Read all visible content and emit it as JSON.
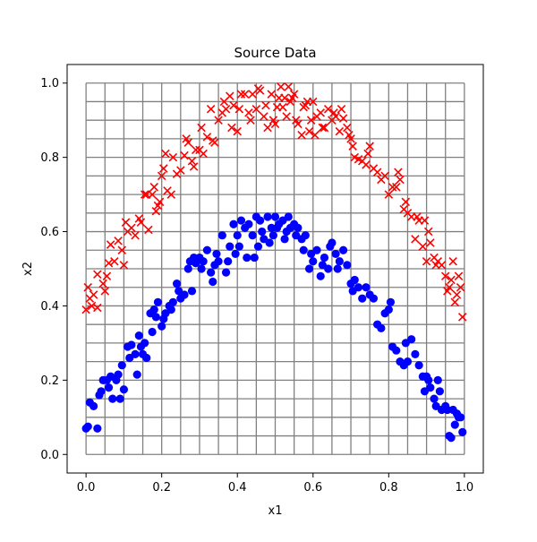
{
  "chart_data": {
    "type": "scatter",
    "title": "Source Data",
    "xlabel": "x1",
    "ylabel": "x2",
    "xlim": [
      -0.05,
      1.05
    ],
    "ylim": [
      -0.05,
      1.05
    ],
    "xticks": [
      0.0,
      0.2,
      0.4,
      0.6,
      0.8,
      1.0
    ],
    "yticks": [
      0.0,
      0.2,
      0.4,
      0.6,
      0.8,
      1.0
    ],
    "xtick_labels": [
      "0.0",
      "0.2",
      "0.4",
      "0.6",
      "0.8",
      "1.0"
    ],
    "ytick_labels": [
      "0.0",
      "0.2",
      "0.4",
      "0.6",
      "0.8",
      "1.0"
    ],
    "grid": {
      "visible": true,
      "range": [
        0,
        1
      ],
      "step": 0.05,
      "color": "#808080"
    },
    "series": [
      {
        "marker": "x",
        "color": "#ff0000",
        "points": [
          [
            0.0,
            0.39
          ],
          [
            0.005,
            0.45
          ],
          [
            0.01,
            0.42
          ],
          [
            0.015,
            0.4
          ],
          [
            0.02,
            0.43
          ],
          [
            0.03,
            0.485
          ],
          [
            0.03,
            0.395
          ],
          [
            0.045,
            0.46
          ],
          [
            0.05,
            0.44
          ],
          [
            0.055,
            0.48
          ],
          [
            0.06,
            0.515
          ],
          [
            0.065,
            0.565
          ],
          [
            0.075,
            0.52
          ],
          [
            0.085,
            0.575
          ],
          [
            0.095,
            0.55
          ],
          [
            0.1,
            0.51
          ],
          [
            0.105,
            0.625
          ],
          [
            0.11,
            0.6
          ],
          [
            0.12,
            0.61
          ],
          [
            0.13,
            0.59
          ],
          [
            0.14,
            0.635
          ],
          [
            0.145,
            0.625
          ],
          [
            0.155,
            0.7
          ],
          [
            0.16,
            0.7
          ],
          [
            0.165,
            0.605
          ],
          [
            0.175,
            0.7
          ],
          [
            0.18,
            0.72
          ],
          [
            0.185,
            0.655
          ],
          [
            0.19,
            0.67
          ],
          [
            0.195,
            0.68
          ],
          [
            0.2,
            0.75
          ],
          [
            0.205,
            0.77
          ],
          [
            0.21,
            0.81
          ],
          [
            0.215,
            0.71
          ],
          [
            0.225,
            0.7
          ],
          [
            0.23,
            0.8
          ],
          [
            0.24,
            0.755
          ],
          [
            0.25,
            0.765
          ],
          [
            0.26,
            0.805
          ],
          [
            0.265,
            0.85
          ],
          [
            0.27,
            0.84
          ],
          [
            0.28,
            0.79
          ],
          [
            0.285,
            0.775
          ],
          [
            0.29,
            0.82
          ],
          [
            0.3,
            0.82
          ],
          [
            0.305,
            0.88
          ],
          [
            0.31,
            0.81
          ],
          [
            0.32,
            0.855
          ],
          [
            0.33,
            0.93
          ],
          [
            0.335,
            0.845
          ],
          [
            0.34,
            0.84
          ],
          [
            0.35,
            0.9
          ],
          [
            0.36,
            0.92
          ],
          [
            0.365,
            0.95
          ],
          [
            0.37,
            0.93
          ],
          [
            0.38,
            0.965
          ],
          [
            0.385,
            0.88
          ],
          [
            0.39,
            0.94
          ],
          [
            0.4,
            0.87
          ],
          [
            0.405,
            0.93
          ],
          [
            0.41,
            0.97
          ],
          [
            0.42,
            0.97
          ],
          [
            0.43,
            0.92
          ],
          [
            0.435,
            0.9
          ],
          [
            0.44,
            0.97
          ],
          [
            0.45,
            0.93
          ],
          [
            0.455,
            0.985
          ],
          [
            0.46,
            0.98
          ],
          [
            0.47,
            0.91
          ],
          [
            0.475,
            0.94
          ],
          [
            0.48,
            0.88
          ],
          [
            0.49,
            0.97
          ],
          [
            0.495,
            0.9
          ],
          [
            0.5,
            0.89
          ],
          [
            0.505,
            0.935
          ],
          [
            0.51,
            0.96
          ],
          [
            0.515,
            0.99
          ],
          [
            0.52,
            0.935
          ],
          [
            0.525,
            0.96
          ],
          [
            0.53,
            0.91
          ],
          [
            0.535,
            0.99
          ],
          [
            0.54,
            0.95
          ],
          [
            0.545,
            0.96
          ],
          [
            0.55,
            0.97
          ],
          [
            0.555,
            0.9
          ],
          [
            0.56,
            0.89
          ],
          [
            0.57,
            0.86
          ],
          [
            0.575,
            0.935
          ],
          [
            0.58,
            0.94
          ],
          [
            0.585,
            0.95
          ],
          [
            0.59,
            0.87
          ],
          [
            0.595,
            0.9
          ],
          [
            0.6,
            0.95
          ],
          [
            0.605,
            0.86
          ],
          [
            0.61,
            0.91
          ],
          [
            0.62,
            0.92
          ],
          [
            0.625,
            0.88
          ],
          [
            0.63,
            0.88
          ],
          [
            0.64,
            0.93
          ],
          [
            0.65,
            0.9
          ],
          [
            0.655,
            0.92
          ],
          [
            0.66,
            0.91
          ],
          [
            0.67,
            0.87
          ],
          [
            0.675,
            0.93
          ],
          [
            0.68,
            0.905
          ],
          [
            0.69,
            0.88
          ],
          [
            0.695,
            0.86
          ],
          [
            0.7,
            0.85
          ],
          [
            0.705,
            0.83
          ],
          [
            0.71,
            0.8
          ],
          [
            0.72,
            0.795
          ],
          [
            0.73,
            0.79
          ],
          [
            0.74,
            0.78
          ],
          [
            0.745,
            0.81
          ],
          [
            0.75,
            0.83
          ],
          [
            0.76,
            0.77
          ],
          [
            0.77,
            0.76
          ],
          [
            0.78,
            0.74
          ],
          [
            0.79,
            0.75
          ],
          [
            0.8,
            0.7
          ],
          [
            0.81,
            0.72
          ],
          [
            0.82,
            0.72
          ],
          [
            0.825,
            0.76
          ],
          [
            0.83,
            0.74
          ],
          [
            0.84,
            0.66
          ],
          [
            0.845,
            0.68
          ],
          [
            0.85,
            0.65
          ],
          [
            0.86,
            0.64
          ],
          [
            0.87,
            0.58
          ],
          [
            0.875,
            0.64
          ],
          [
            0.88,
            0.63
          ],
          [
            0.89,
            0.56
          ],
          [
            0.895,
            0.63
          ],
          [
            0.9,
            0.52
          ],
          [
            0.905,
            0.6
          ],
          [
            0.91,
            0.57
          ],
          [
            0.92,
            0.53
          ],
          [
            0.925,
            0.51
          ],
          [
            0.93,
            0.52
          ],
          [
            0.94,
            0.51
          ],
          [
            0.95,
            0.48
          ],
          [
            0.955,
            0.44
          ],
          [
            0.96,
            0.45
          ],
          [
            0.965,
            0.47
          ],
          [
            0.97,
            0.52
          ],
          [
            0.975,
            0.41
          ],
          [
            0.98,
            0.43
          ],
          [
            0.985,
            0.48
          ],
          [
            0.99,
            0.45
          ],
          [
            0.995,
            0.37
          ]
        ]
      },
      {
        "marker": "o",
        "color": "#0000ff",
        "points": [
          [
            0.0,
            0.07
          ],
          [
            0.005,
            0.075
          ],
          [
            0.01,
            0.14
          ],
          [
            0.02,
            0.13
          ],
          [
            0.03,
            0.07
          ],
          [
            0.035,
            0.16
          ],
          [
            0.04,
            0.17
          ],
          [
            0.045,
            0.2
          ],
          [
            0.055,
            0.2
          ],
          [
            0.06,
            0.18
          ],
          [
            0.065,
            0.21
          ],
          [
            0.07,
            0.15
          ],
          [
            0.08,
            0.2
          ],
          [
            0.085,
            0.215
          ],
          [
            0.09,
            0.15
          ],
          [
            0.095,
            0.24
          ],
          [
            0.1,
            0.175
          ],
          [
            0.11,
            0.29
          ],
          [
            0.115,
            0.26
          ],
          [
            0.12,
            0.295
          ],
          [
            0.13,
            0.27
          ],
          [
            0.135,
            0.215
          ],
          [
            0.14,
            0.32
          ],
          [
            0.145,
            0.29
          ],
          [
            0.15,
            0.27
          ],
          [
            0.155,
            0.3
          ],
          [
            0.16,
            0.26
          ],
          [
            0.17,
            0.38
          ],
          [
            0.175,
            0.33
          ],
          [
            0.18,
            0.39
          ],
          [
            0.185,
            0.37
          ],
          [
            0.19,
            0.41
          ],
          [
            0.2,
            0.345
          ],
          [
            0.205,
            0.365
          ],
          [
            0.21,
            0.38
          ],
          [
            0.22,
            0.4
          ],
          [
            0.225,
            0.39
          ],
          [
            0.23,
            0.41
          ],
          [
            0.24,
            0.46
          ],
          [
            0.245,
            0.44
          ],
          [
            0.25,
            0.42
          ],
          [
            0.26,
            0.43
          ],
          [
            0.27,
            0.5
          ],
          [
            0.275,
            0.52
          ],
          [
            0.28,
            0.44
          ],
          [
            0.285,
            0.53
          ],
          [
            0.29,
            0.515
          ],
          [
            0.3,
            0.53
          ],
          [
            0.305,
            0.5
          ],
          [
            0.31,
            0.52
          ],
          [
            0.32,
            0.55
          ],
          [
            0.33,
            0.49
          ],
          [
            0.335,
            0.465
          ],
          [
            0.34,
            0.51
          ],
          [
            0.345,
            0.54
          ],
          [
            0.35,
            0.52
          ],
          [
            0.36,
            0.59
          ],
          [
            0.37,
            0.49
          ],
          [
            0.375,
            0.52
          ],
          [
            0.38,
            0.56
          ],
          [
            0.39,
            0.62
          ],
          [
            0.395,
            0.54
          ],
          [
            0.4,
            0.59
          ],
          [
            0.405,
            0.56
          ],
          [
            0.41,
            0.63
          ],
          [
            0.42,
            0.61
          ],
          [
            0.425,
            0.53
          ],
          [
            0.43,
            0.62
          ],
          [
            0.44,
            0.59
          ],
          [
            0.445,
            0.53
          ],
          [
            0.45,
            0.64
          ],
          [
            0.455,
            0.56
          ],
          [
            0.46,
            0.63
          ],
          [
            0.465,
            0.6
          ],
          [
            0.47,
            0.58
          ],
          [
            0.48,
            0.64
          ],
          [
            0.485,
            0.57
          ],
          [
            0.49,
            0.61
          ],
          [
            0.495,
            0.59
          ],
          [
            0.5,
            0.64
          ],
          [
            0.505,
            0.61
          ],
          [
            0.51,
            0.62
          ],
          [
            0.52,
            0.63
          ],
          [
            0.525,
            0.58
          ],
          [
            0.53,
            0.6
          ],
          [
            0.535,
            0.64
          ],
          [
            0.54,
            0.61
          ],
          [
            0.55,
            0.62
          ],
          [
            0.555,
            0.59
          ],
          [
            0.56,
            0.61
          ],
          [
            0.57,
            0.58
          ],
          [
            0.575,
            0.55
          ],
          [
            0.58,
            0.59
          ],
          [
            0.59,
            0.5
          ],
          [
            0.595,
            0.54
          ],
          [
            0.6,
            0.52
          ],
          [
            0.61,
            0.55
          ],
          [
            0.62,
            0.48
          ],
          [
            0.625,
            0.51
          ],
          [
            0.63,
            0.53
          ],
          [
            0.64,
            0.5
          ],
          [
            0.645,
            0.56
          ],
          [
            0.65,
            0.57
          ],
          [
            0.66,
            0.54
          ],
          [
            0.665,
            0.5
          ],
          [
            0.67,
            0.52
          ],
          [
            0.68,
            0.55
          ],
          [
            0.69,
            0.51
          ],
          [
            0.7,
            0.46
          ],
          [
            0.705,
            0.44
          ],
          [
            0.71,
            0.47
          ],
          [
            0.72,
            0.45
          ],
          [
            0.73,
            0.42
          ],
          [
            0.74,
            0.45
          ],
          [
            0.75,
            0.43
          ],
          [
            0.76,
            0.42
          ],
          [
            0.77,
            0.35
          ],
          [
            0.78,
            0.34
          ],
          [
            0.79,
            0.38
          ],
          [
            0.8,
            0.39
          ],
          [
            0.805,
            0.41
          ],
          [
            0.81,
            0.29
          ],
          [
            0.82,
            0.28
          ],
          [
            0.83,
            0.25
          ],
          [
            0.84,
            0.24
          ],
          [
            0.845,
            0.3
          ],
          [
            0.85,
            0.25
          ],
          [
            0.86,
            0.31
          ],
          [
            0.87,
            0.27
          ],
          [
            0.88,
            0.24
          ],
          [
            0.89,
            0.21
          ],
          [
            0.895,
            0.17
          ],
          [
            0.9,
            0.21
          ],
          [
            0.905,
            0.2
          ],
          [
            0.91,
            0.18
          ],
          [
            0.92,
            0.15
          ],
          [
            0.925,
            0.13
          ],
          [
            0.93,
            0.2
          ],
          [
            0.935,
            0.17
          ],
          [
            0.94,
            0.12
          ],
          [
            0.95,
            0.13
          ],
          [
            0.955,
            0.12
          ],
          [
            0.96,
            0.05
          ],
          [
            0.965,
            0.045
          ],
          [
            0.97,
            0.12
          ],
          [
            0.975,
            0.08
          ],
          [
            0.98,
            0.11
          ],
          [
            0.985,
            0.1
          ],
          [
            0.99,
            0.1
          ],
          [
            0.995,
            0.06
          ]
        ]
      }
    ]
  }
}
